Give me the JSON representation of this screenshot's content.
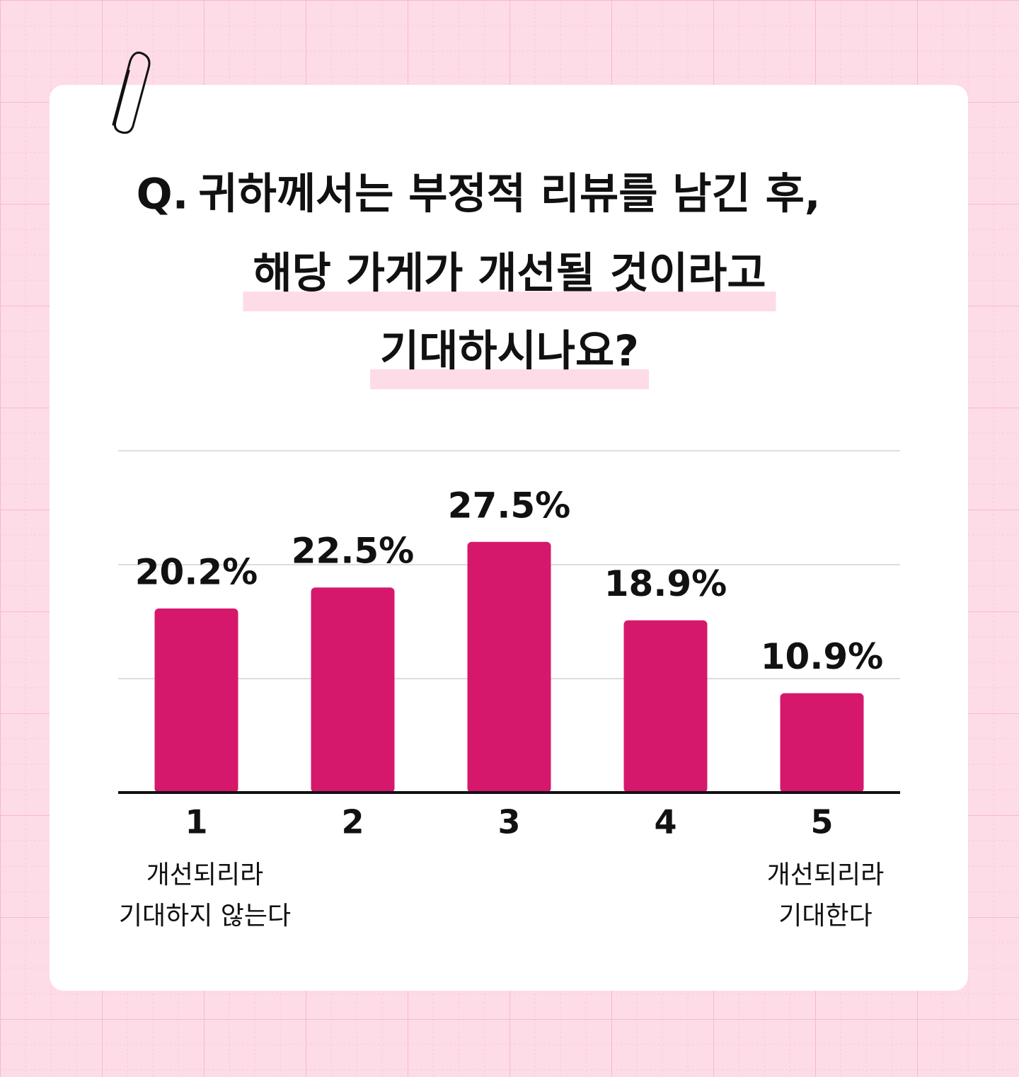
{
  "chart_data": {
    "type": "bar",
    "title_prefix": "Q.",
    "title_lines": [
      "귀하께서는 부정적 리뷰를 남긴 후,",
      "해당 가게가 개선될 것이라고",
      "기대하시나요?"
    ],
    "categories": [
      "1",
      "2",
      "3",
      "4",
      "5"
    ],
    "values": [
      20.2,
      22.5,
      27.5,
      18.9,
      10.9
    ],
    "value_labels": [
      "20.2%",
      "22.5%",
      "27.5%",
      "18.9%",
      "10.9%"
    ],
    "color": "#d6186c",
    "low_label": [
      "개선되리라",
      "기대하지 않는다"
    ],
    "high_label": [
      "개선되리라",
      "기대한다"
    ],
    "ylim": [
      0,
      37.5
    ],
    "yticks": [
      0,
      12.5,
      25,
      37.5
    ],
    "grid": true
  }
}
